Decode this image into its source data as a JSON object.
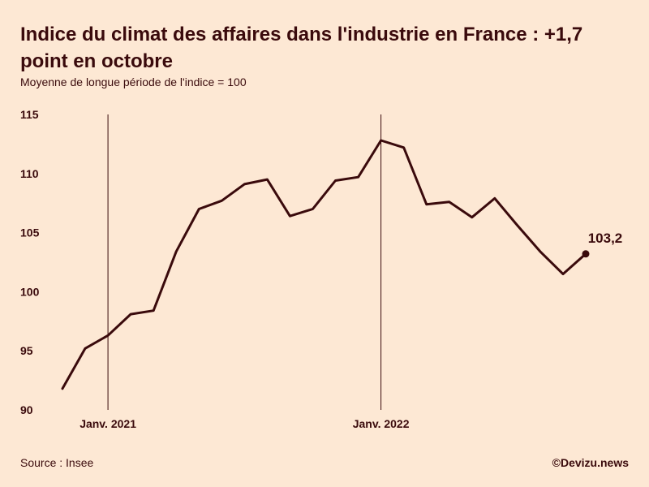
{
  "title": "Indice du climat des affaires dans l'industrie en France : +1,7 point en octobre",
  "subtitle": "Moyenne de longue période de l'indice = 100",
  "footer": {
    "source": "Source : Insee",
    "credit": "©Devizu.news"
  },
  "colors": {
    "background": "#fde8d4",
    "line": "#3a0a0c",
    "text": "#3a0a0c"
  },
  "chart_data": {
    "type": "line",
    "title": "Indice du climat des affaires dans l'industrie en France : +1,7 point en octobre",
    "subtitle": "Moyenne de longue période de l'indice = 100",
    "xlabel": "",
    "ylabel": "",
    "ylim": [
      90,
      115
    ],
    "yticks": [
      115,
      110,
      105,
      100,
      95,
      90
    ],
    "xtick_labels": [
      "Janv. 2021",
      "Janv. 2022"
    ],
    "grid": false,
    "series": [
      {
        "name": "Indice du climat des affaires",
        "x": [
          "Nov. 2020",
          "Déc. 2020",
          "Janv. 2021",
          "Févr. 2021",
          "Mars 2021",
          "Avr. 2021",
          "Mai 2021",
          "Juin 2021",
          "Juil. 2021",
          "Août 2021",
          "Sept. 2021",
          "Oct. 2021",
          "Nov. 2021",
          "Déc. 2021",
          "Janv. 2022",
          "Févr. 2022",
          "Mars 2022",
          "Avr. 2022",
          "Mai 2022",
          "Juin 2022",
          "Juil. 2022",
          "Août 2022",
          "Sept. 2022",
          "Oct. 2022"
        ],
        "values": [
          91.8,
          95.2,
          96.3,
          98.1,
          98.4,
          103.4,
          107.0,
          107.7,
          109.1,
          109.5,
          106.4,
          107.0,
          109.4,
          109.7,
          112.8,
          112.2,
          107.4,
          107.6,
          106.3,
          107.9,
          105.6,
          103.4,
          101.5,
          103.2
        ]
      }
    ],
    "last_value_label": "103,2"
  }
}
